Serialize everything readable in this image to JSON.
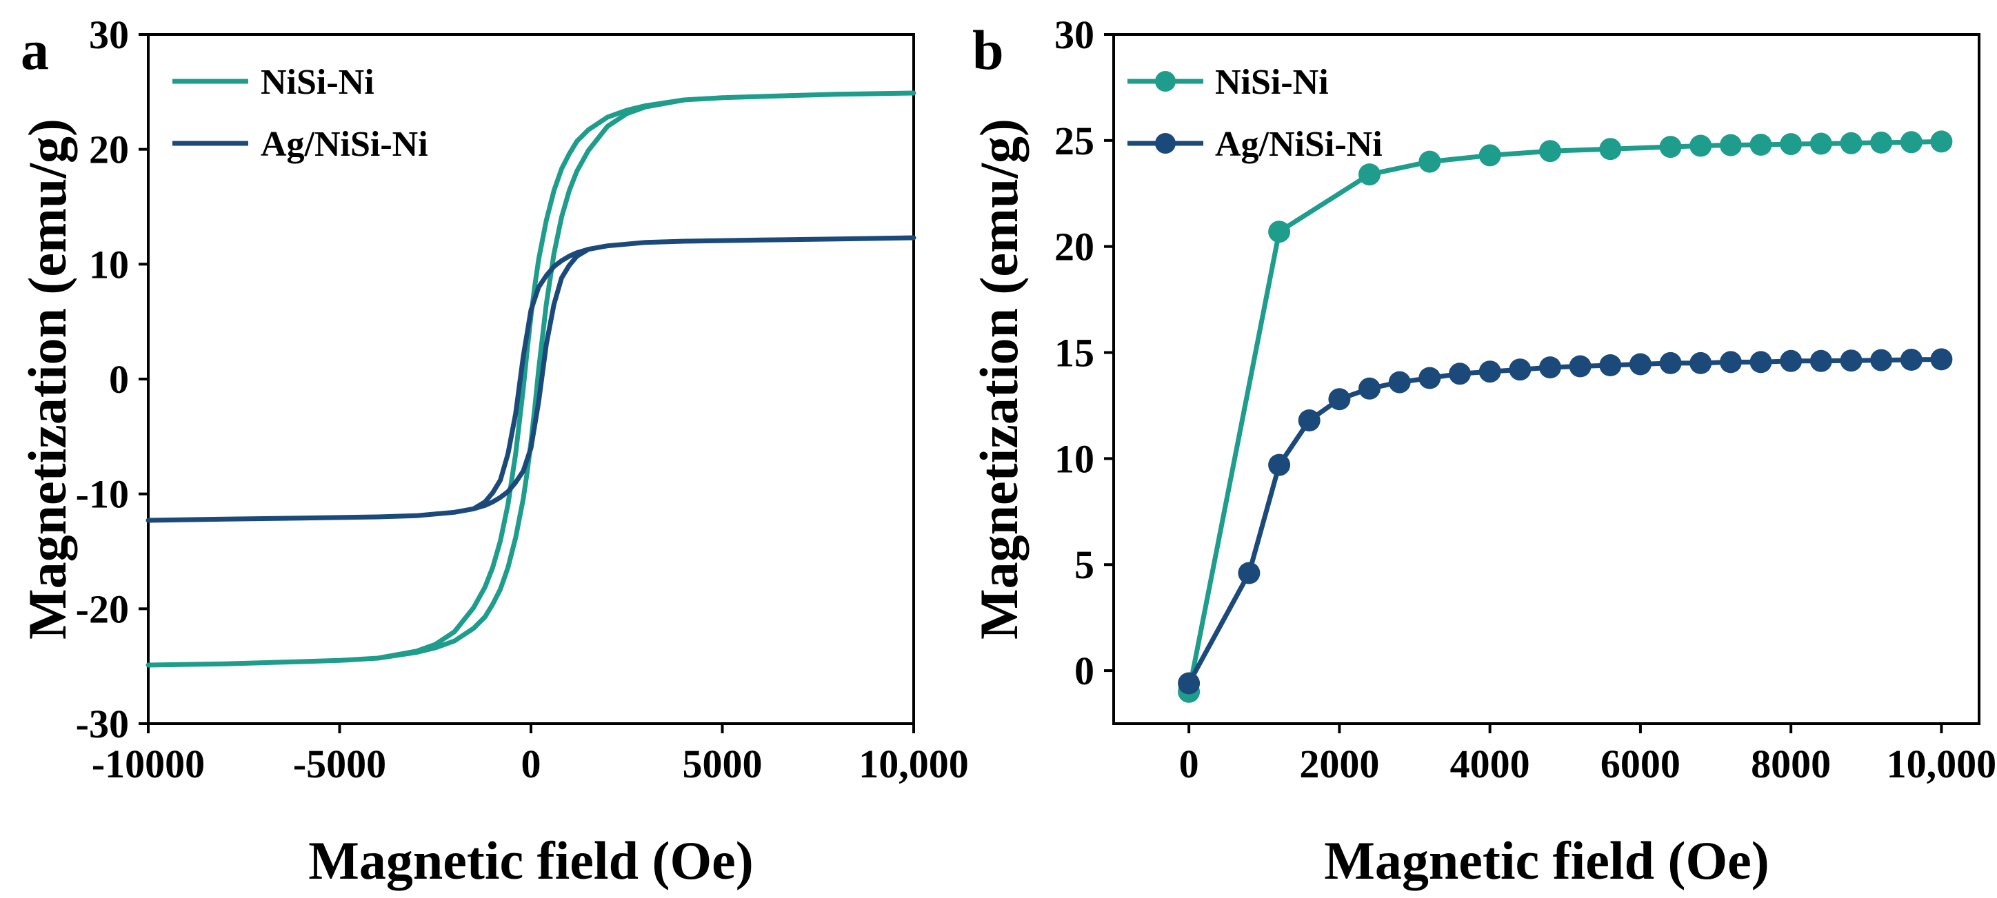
{
  "chart_data": [
    {
      "panel": "a",
      "type": "line",
      "xlabel": "Magnetic field (Oe)",
      "ylabel": "Magnetization (emu/g)",
      "xlim": [
        -10000,
        10000
      ],
      "ylim": [
        -30,
        30
      ],
      "x_ticks": [
        -10000,
        -5000,
        0,
        5000,
        10000
      ],
      "x_tick_labels": [
        "-10000",
        "-5000",
        "0",
        "5000",
        "10,000"
      ],
      "y_ticks": [
        -30,
        -20,
        -10,
        0,
        10,
        20,
        30
      ],
      "y_tick_labels": [
        "-30",
        "-20",
        "-10",
        "0",
        "10",
        "20",
        "30"
      ],
      "legend_position": "top-left",
      "grid": false,
      "series": [
        {
          "name": "NiSi-Ni",
          "color": "#1e9c8c",
          "x": [
            10000,
            8000,
            6000,
            5000,
            4000,
            3000,
            2500,
            2000,
            1500,
            1200,
            1000,
            800,
            600,
            400,
            200,
            100,
            0,
            -100,
            -200,
            -400,
            -600,
            -800,
            -1000,
            -1200,
            -1500,
            -2000,
            -2500,
            -3000,
            -4000,
            -5000,
            -6000,
            -8000,
            -10000,
            -8000,
            -6000,
            -5000,
            -4000,
            -3000,
            -2500,
            -2000,
            -1500,
            -1200,
            -1000,
            -800,
            -600,
            -400,
            -200,
            -100,
            0,
            100,
            200,
            400,
            600,
            800,
            1000,
            1200,
            1500,
            2000,
            2500,
            3000,
            4000,
            5000,
            6000,
            8000,
            10000
          ],
          "y": [
            24.9,
            24.8,
            24.6,
            24.5,
            24.3,
            23.8,
            23.4,
            22.8,
            21.7,
            20.7,
            19.6,
            18.3,
            16.4,
            13.8,
            10.4,
            8.1,
            5.5,
            2.5,
            -0.8,
            -6.5,
            -10.9,
            -14.1,
            -16.4,
            -18.1,
            -19.9,
            -22.0,
            -23.1,
            -23.7,
            -24.3,
            -24.5,
            -24.6,
            -24.8,
            -24.9,
            -24.8,
            -24.6,
            -24.5,
            -24.3,
            -23.8,
            -23.4,
            -22.8,
            -21.7,
            -20.7,
            -19.6,
            -18.3,
            -16.4,
            -13.8,
            -10.4,
            -8.1,
            -5.5,
            -2.5,
            0.8,
            6.5,
            10.9,
            14.1,
            16.4,
            18.1,
            19.9,
            22.0,
            23.1,
            23.7,
            24.3,
            24.5,
            24.6,
            24.8,
            24.9
          ]
        },
        {
          "name": "Ag/NiSi-Ni",
          "color": "#1b4a7a",
          "x": [
            10000,
            8000,
            6000,
            4000,
            3000,
            2000,
            1500,
            1200,
            1000,
            800,
            600,
            400,
            200,
            0,
            -200,
            -400,
            -600,
            -800,
            -1000,
            -1200,
            -1500,
            -2000,
            -3000,
            -4000,
            -6000,
            -8000,
            -10000,
            -8000,
            -6000,
            -4000,
            -3000,
            -2000,
            -1500,
            -1200,
            -1000,
            -800,
            -600,
            -400,
            -200,
            0,
            200,
            400,
            600,
            800,
            1000,
            1200,
            1500,
            2000,
            3000,
            4000,
            6000,
            8000,
            10000
          ],
          "y": [
            12.3,
            12.2,
            12.1,
            12.0,
            11.9,
            11.6,
            11.3,
            11.0,
            10.7,
            10.3,
            9.8,
            9.0,
            8.0,
            6.0,
            2.0,
            -3.0,
            -6.5,
            -8.8,
            -9.9,
            -10.7,
            -11.3,
            -11.6,
            -11.9,
            -12.0,
            -12.1,
            -12.2,
            -12.3,
            -12.2,
            -12.1,
            -12.0,
            -11.9,
            -11.6,
            -11.3,
            -11.0,
            -10.7,
            -10.3,
            -9.8,
            -9.0,
            -8.0,
            -6.0,
            -2.0,
            3.0,
            6.5,
            8.8,
            9.9,
            10.7,
            11.3,
            11.6,
            11.9,
            12.0,
            12.1,
            12.2,
            12.3
          ]
        }
      ]
    },
    {
      "panel": "b",
      "type": "line",
      "xlabel": "Magnetic field (Oe)",
      "ylabel": "Magnetization (emu/g)",
      "xlim": [
        -1000,
        10500
      ],
      "ylim": [
        -2.5,
        30
      ],
      "x_ticks": [
        0,
        2000,
        4000,
        6000,
        8000,
        10000
      ],
      "x_tick_labels": [
        "0",
        "2000",
        "4000",
        "6000",
        "8000",
        "10,000"
      ],
      "y_ticks": [
        0,
        5,
        10,
        15,
        20,
        25,
        30
      ],
      "y_tick_labels": [
        "0",
        "5",
        "10",
        "15",
        "20",
        "25",
        "30"
      ],
      "legend_position": "top-left",
      "grid": false,
      "series": [
        {
          "name": "NiSi-Ni",
          "color": "#1e9c8c",
          "x": [
            0,
            1200,
            2400,
            3200,
            4000,
            4800,
            5600,
            6400,
            6800,
            7200,
            7600,
            8000,
            8400,
            8800,
            9200,
            9600,
            10000
          ],
          "y": [
            -1.0,
            20.7,
            23.4,
            24.0,
            24.3,
            24.5,
            24.6,
            24.7,
            24.75,
            24.78,
            24.8,
            24.83,
            24.85,
            24.87,
            24.9,
            24.92,
            24.95
          ]
        },
        {
          "name": "Ag/NiSi-Ni",
          "color": "#1b4a7a",
          "x": [
            0,
            800,
            1200,
            1600,
            2000,
            2400,
            2800,
            3200,
            3600,
            4000,
            4400,
            4800,
            5200,
            5600,
            6000,
            6400,
            6800,
            7200,
            7600,
            8000,
            8400,
            8800,
            9200,
            9600,
            10000
          ],
          "y": [
            -0.6,
            4.6,
            9.7,
            11.8,
            12.8,
            13.3,
            13.6,
            13.8,
            14.0,
            14.1,
            14.2,
            14.3,
            14.35,
            14.4,
            14.45,
            14.5,
            14.5,
            14.55,
            14.55,
            14.6,
            14.6,
            14.62,
            14.64,
            14.66,
            14.68
          ]
        }
      ]
    }
  ]
}
